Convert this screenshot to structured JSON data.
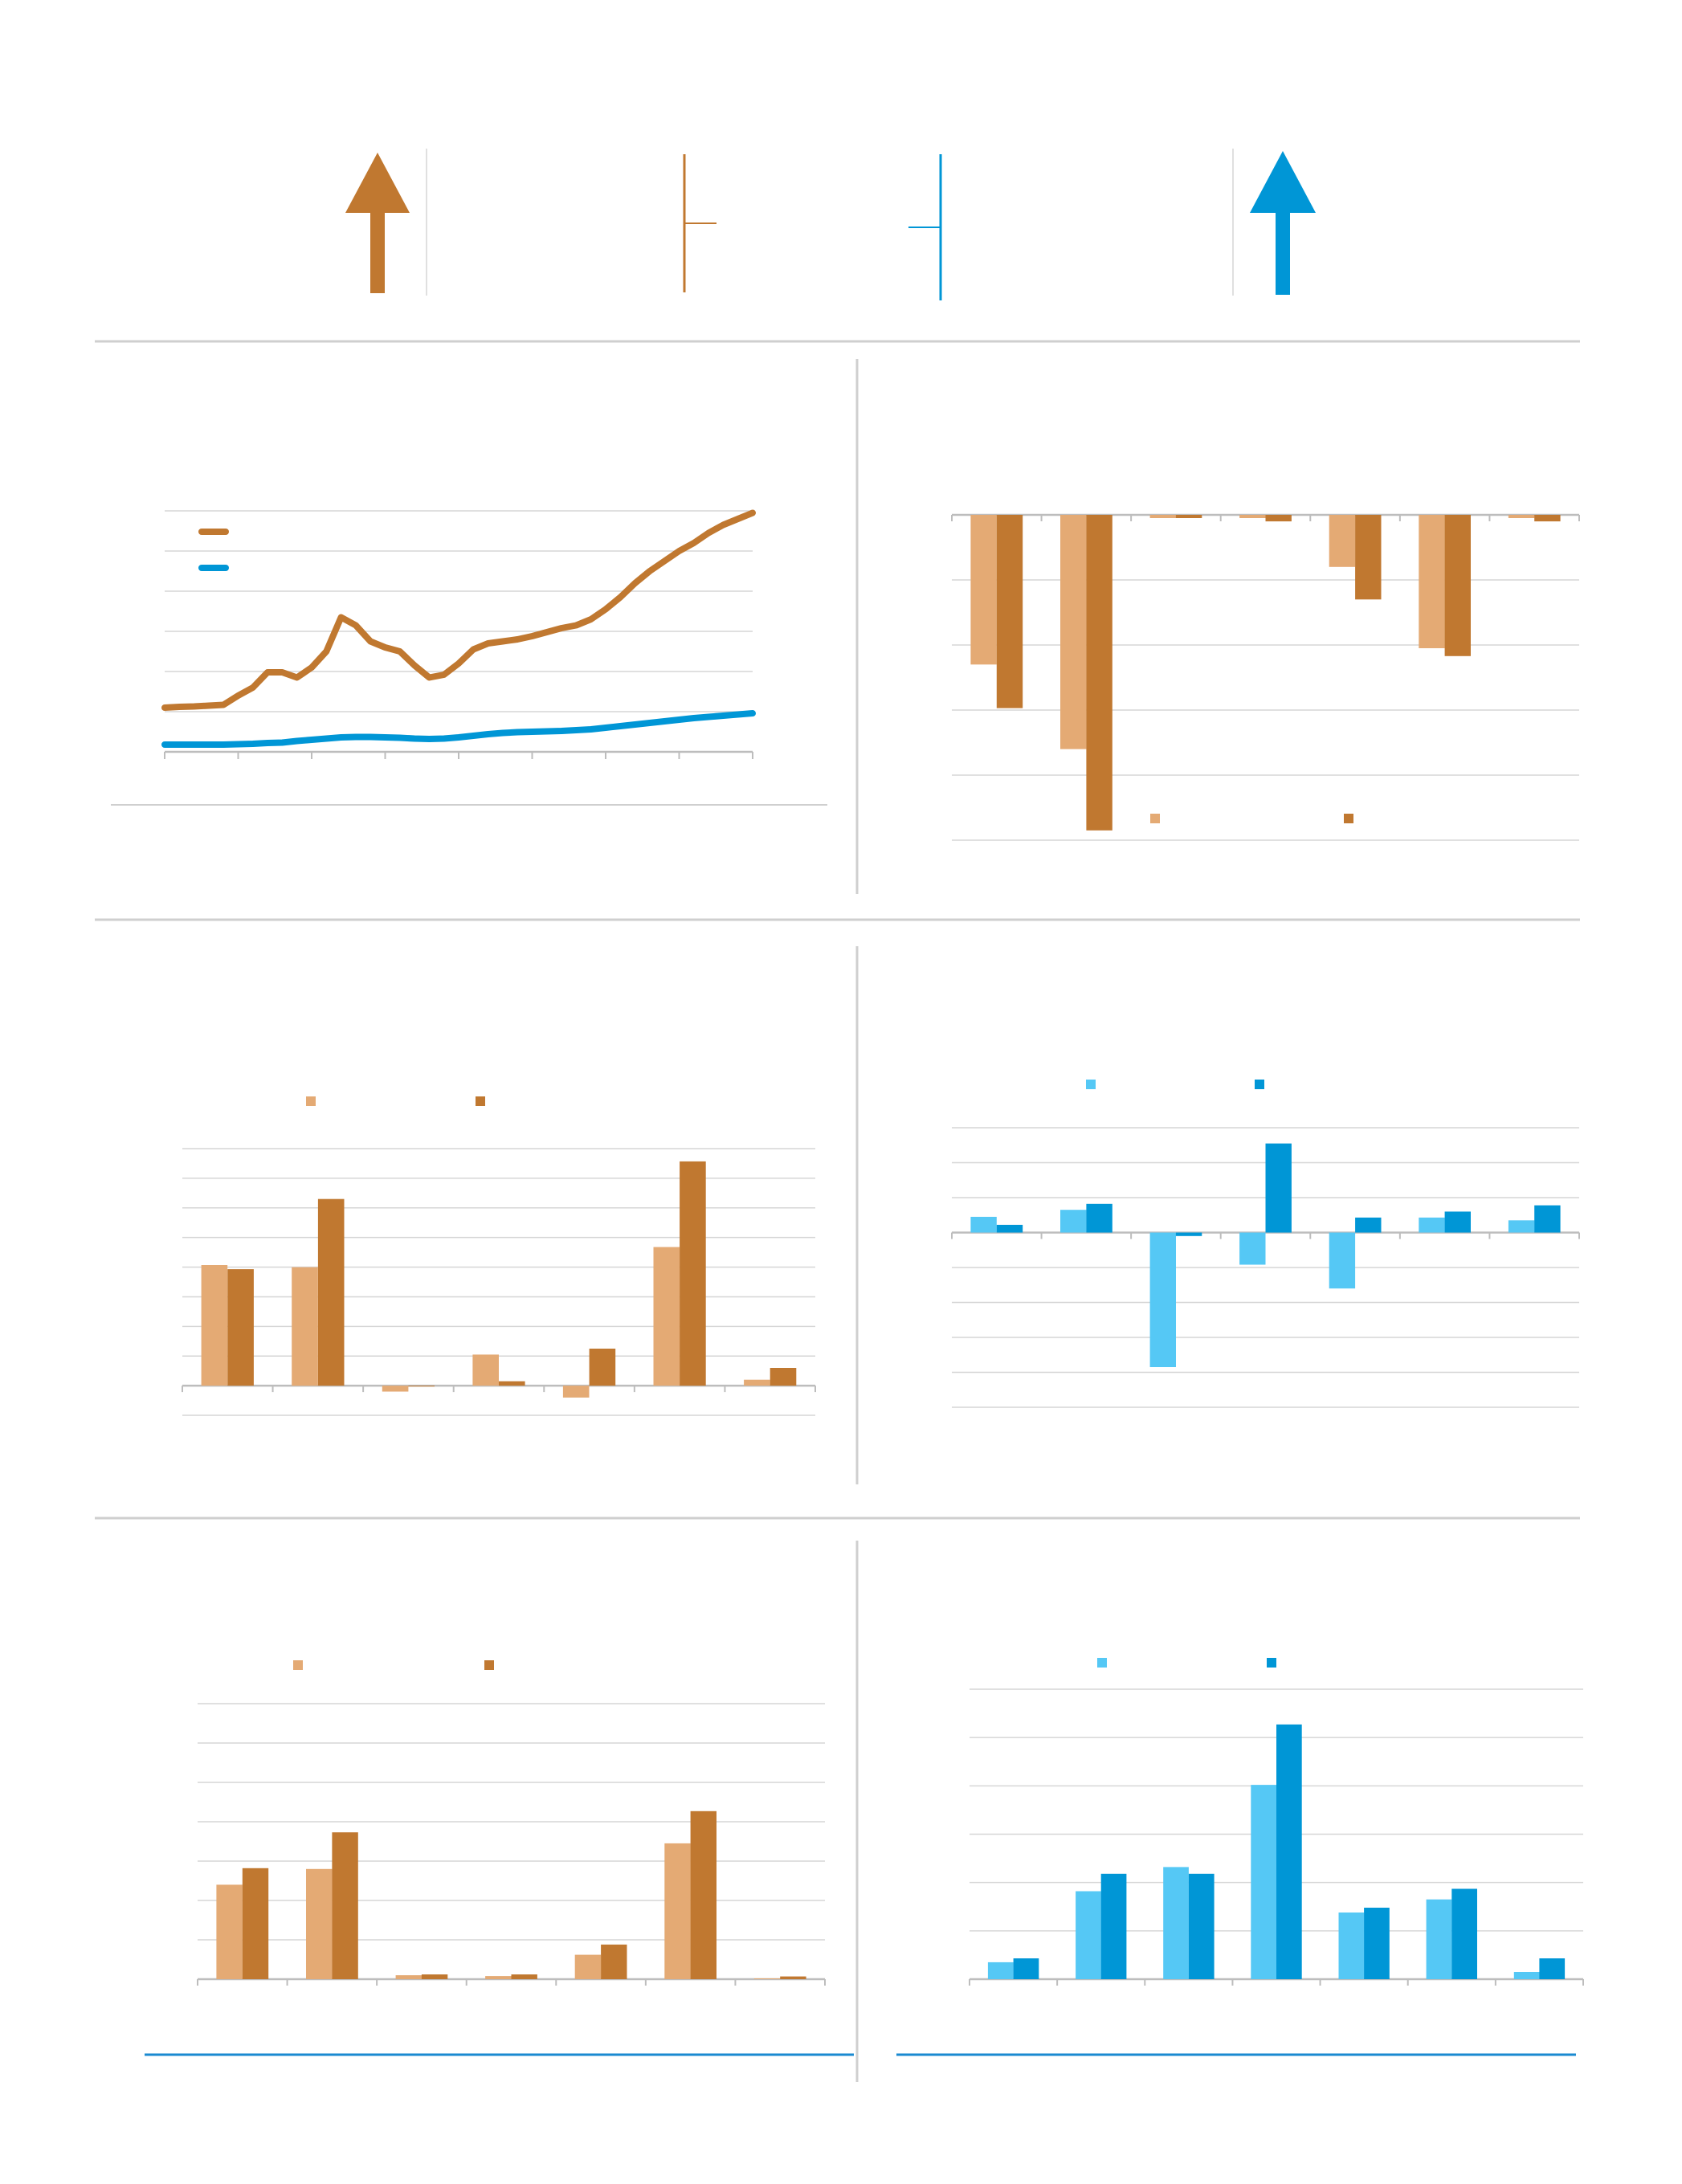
{
  "colors": {
    "brown": "#c07830",
    "brown_light": "#e4aa74",
    "blue": "#0096d6",
    "blue_light": "#55c8f5",
    "rule": "#cfcfcf",
    "grid": "#d6d6d6",
    "axis": "#bdbdbd",
    "accent_line": "#1a8ad0"
  },
  "header": {
    "arrow_left_icon": "arrow-up-icon",
    "arrow_right_icon": "arrow-up-icon"
  },
  "chart_data": [
    {
      "id": "line-trend",
      "type": "line",
      "x": [
        0,
        2.5,
        5,
        7.5,
        10,
        12.5,
        15,
        17.5,
        20,
        22.5,
        25,
        27.5,
        30,
        32.5,
        35,
        37.5,
        40,
        42.5,
        45,
        47.5,
        50,
        52.5,
        55,
        57.5,
        60,
        62.5,
        65,
        67.5,
        70,
        72.5,
        75,
        77.5,
        80,
        82.5,
        85,
        87.5,
        90,
        92.5,
        95,
        97.5,
        100
      ],
      "ylim": [
        0,
        6
      ],
      "x_ticks": 8,
      "series": [
        {
          "color": "brown",
          "values": [
            1.1,
            1.12,
            1.13,
            1.15,
            1.17,
            1.4,
            1.6,
            1.98,
            1.98,
            1.85,
            2.1,
            2.5,
            3.35,
            3.15,
            2.75,
            2.6,
            2.5,
            2.15,
            1.85,
            1.92,
            2.2,
            2.55,
            2.7,
            2.75,
            2.8,
            2.88,
            2.98,
            3.08,
            3.15,
            3.3,
            3.55,
            3.85,
            4.2,
            4.5,
            4.75,
            5.0,
            5.2,
            5.45,
            5.65,
            5.8,
            5.95
          ]
        },
        {
          "color": "blue",
          "values": [
            0.18,
            0.18,
            0.18,
            0.18,
            0.18,
            0.19,
            0.2,
            0.22,
            0.23,
            0.27,
            0.3,
            0.33,
            0.36,
            0.37,
            0.37,
            0.36,
            0.35,
            0.33,
            0.32,
            0.33,
            0.36,
            0.4,
            0.44,
            0.47,
            0.49,
            0.5,
            0.51,
            0.52,
            0.54,
            0.56,
            0.6,
            0.64,
            0.68,
            0.72,
            0.76,
            0.8,
            0.84,
            0.87,
            0.9,
            0.93,
            0.96
          ]
        }
      ]
    },
    {
      "id": "bars-top-right",
      "type": "bar",
      "categories": [
        "",
        "",
        "",
        "",
        "",
        "",
        ""
      ],
      "ylim": [
        -5,
        0
      ],
      "series": [
        {
          "color": "brown_light",
          "values": [
            -2.3,
            -3.6,
            -0.05,
            -0.05,
            -0.8,
            -2.05,
            -0.05
          ]
        },
        {
          "color": "brown",
          "values": [
            -2.97,
            -4.85,
            -0.05,
            -0.1,
            -1.3,
            -2.17,
            -0.1
          ]
        }
      ]
    },
    {
      "id": "bars-mid-left",
      "type": "bar",
      "categories": [
        "",
        "",
        "",
        "",
        "",
        "",
        ""
      ],
      "ylim": [
        -1,
        8
      ],
      "series": [
        {
          "color": "brown_light",
          "values": [
            4.07,
            4.0,
            -0.2,
            1.05,
            -0.4,
            4.68,
            0.2
          ]
        },
        {
          "color": "brown",
          "values": [
            3.93,
            6.3,
            0.0,
            0.15,
            1.25,
            7.57,
            0.6
          ]
        }
      ]
    },
    {
      "id": "bars-mid-right",
      "type": "bar",
      "categories": [
        "",
        "",
        "",
        "",
        "",
        "",
        ""
      ],
      "ylim": [
        -5,
        3
      ],
      "series": [
        {
          "color": "blue_light",
          "values": [
            0.45,
            0.65,
            -3.85,
            -0.92,
            -1.6,
            0.43,
            0.35
          ]
        },
        {
          "color": "blue",
          "values": [
            0.22,
            0.82,
            -0.1,
            2.55,
            0.43,
            0.6,
            0.78
          ]
        }
      ]
    },
    {
      "id": "bars-bottom-left",
      "type": "bar",
      "categories": [
        "",
        "",
        "",
        "",
        "",
        "",
        ""
      ],
      "ylim": [
        0,
        7
      ],
      "series": [
        {
          "color": "brown_light",
          "values": [
            2.4,
            2.8,
            0.1,
            0.08,
            0.62,
            3.45,
            0.02
          ]
        },
        {
          "color": "brown",
          "values": [
            2.82,
            3.73,
            0.12,
            0.12,
            0.88,
            4.27,
            0.07
          ]
        }
      ]
    },
    {
      "id": "bars-bottom-right",
      "type": "bar",
      "categories": [
        "",
        "",
        "",
        "",
        "",
        "",
        ""
      ],
      "ylim": [
        0,
        6
      ],
      "series": [
        {
          "color": "blue_light",
          "values": [
            0.35,
            1.82,
            2.32,
            4.02,
            1.38,
            1.65,
            0.15
          ]
        },
        {
          "color": "blue",
          "values": [
            0.43,
            2.18,
            2.18,
            5.27,
            1.48,
            1.87,
            0.43
          ]
        }
      ]
    }
  ]
}
